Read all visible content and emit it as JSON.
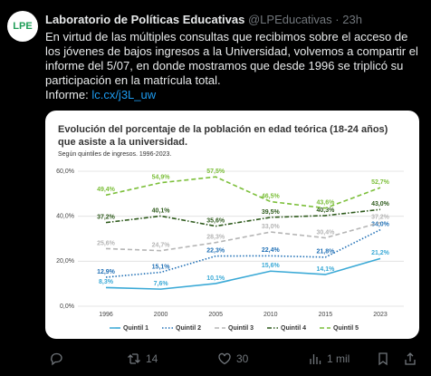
{
  "tweet": {
    "avatar": "LPE",
    "name": "Laboratorio de Políticas Educativas",
    "handle": "@LPEducativas",
    "separator": "·",
    "time": "23h",
    "body": "En virtud de las múltiples consultas que recibimos sobre el acceso de los jóvenes de bajos ingresos a la Universidad, volvemos a compartir el informe del 5/07, en donde mostramos que desde 1996 se triplicó su participación en la matrícula total.",
    "link_label": "Informe:",
    "link": "lc.cx/j3L_uw",
    "retweets": "14",
    "likes": "30",
    "views": "1 mil"
  },
  "chart_data": {
    "type": "line",
    "title": "Evolución del porcentaje de la población en edad teórica (18-24 años) que asiste a la universidad.",
    "subtitle": "Según quintiles de ingresos. 1996-2023.",
    "categories": [
      "1996",
      "2000",
      "2005",
      "2010",
      "2015",
      "2023"
    ],
    "ylim": [
      0,
      60
    ],
    "yticks": [
      {
        "value": 0,
        "label": "0,0%"
      },
      {
        "value": 20,
        "label": "20,0%"
      },
      {
        "value": 40,
        "label": "40,0%"
      },
      {
        "value": 60,
        "label": "60,0%"
      }
    ],
    "grid": true,
    "legend": "bottom",
    "series": [
      {
        "name": "Quintil 1",
        "color": "#3aa9d6",
        "dash": "solid",
        "values": [
          8.3,
          7.6,
          10.1,
          15.6,
          14.1,
          21.2
        ],
        "value_labels": [
          "8,3%",
          "7,6%",
          "10,1%",
          "15,6%",
          "14,1%",
          "21,2%"
        ]
      },
      {
        "name": "Quintil 2",
        "color": "#1f6fb5",
        "dash": "dotted",
        "values": [
          12.9,
          15.1,
          22.3,
          22.4,
          21.8,
          34.0
        ],
        "value_labels": [
          "12,9%",
          "15,1%",
          "22,3%",
          "22,4%",
          "21,8%",
          "34,0%"
        ]
      },
      {
        "name": "Quintil 3",
        "color": "#b5b5b5",
        "dash": "dashed",
        "values": [
          25.6,
          24.7,
          28.3,
          33.0,
          30.4,
          37.2
        ],
        "value_labels": [
          "25,6%",
          "24,7%",
          "28,3%",
          "33,0%",
          "30,4%",
          "37,2%"
        ]
      },
      {
        "name": "Quintil 4",
        "color": "#2e5a1c",
        "dash": "dashdot",
        "values": [
          37.2,
          40.1,
          35.6,
          39.5,
          40.3,
          43.0
        ],
        "value_labels": [
          "37,2%",
          "40,1%",
          "35,6%",
          "39,5%",
          "40,3%",
          "43,0%"
        ]
      },
      {
        "name": "Quintil 5",
        "color": "#7cbf3a",
        "dash": "dashed",
        "values": [
          49.4,
          54.9,
          57.5,
          46.5,
          43.6,
          52.7
        ],
        "value_labels": [
          "49,4%",
          "54,9%",
          "57,5%",
          "46,5%",
          "43,6%",
          "52,7%"
        ]
      }
    ]
  }
}
